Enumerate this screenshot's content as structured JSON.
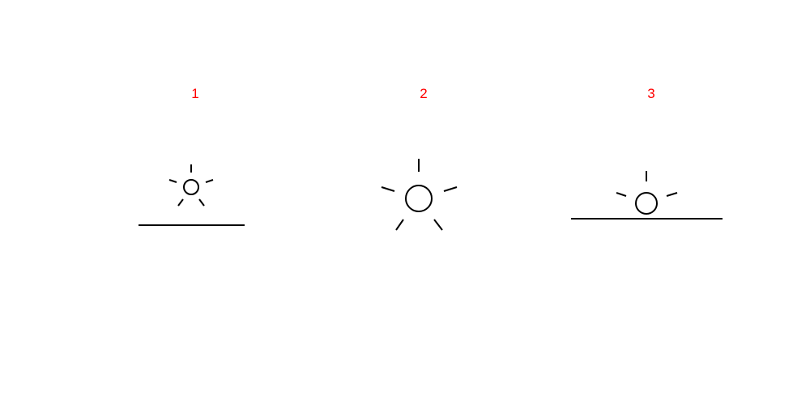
{
  "colors": {
    "label": "#ff0000",
    "stroke": "#000000",
    "background": "#ffffff"
  },
  "panels": [
    {
      "label": "1",
      "sun_icon": "sun-icon",
      "has_horizon": true,
      "sun_rays": 5
    },
    {
      "label": "2",
      "sun_icon": "sun-icon",
      "has_horizon": false,
      "sun_rays": 5
    },
    {
      "label": "3",
      "sun_icon": "sunrise-icon",
      "has_horizon": true,
      "sun_rays": 3
    }
  ]
}
